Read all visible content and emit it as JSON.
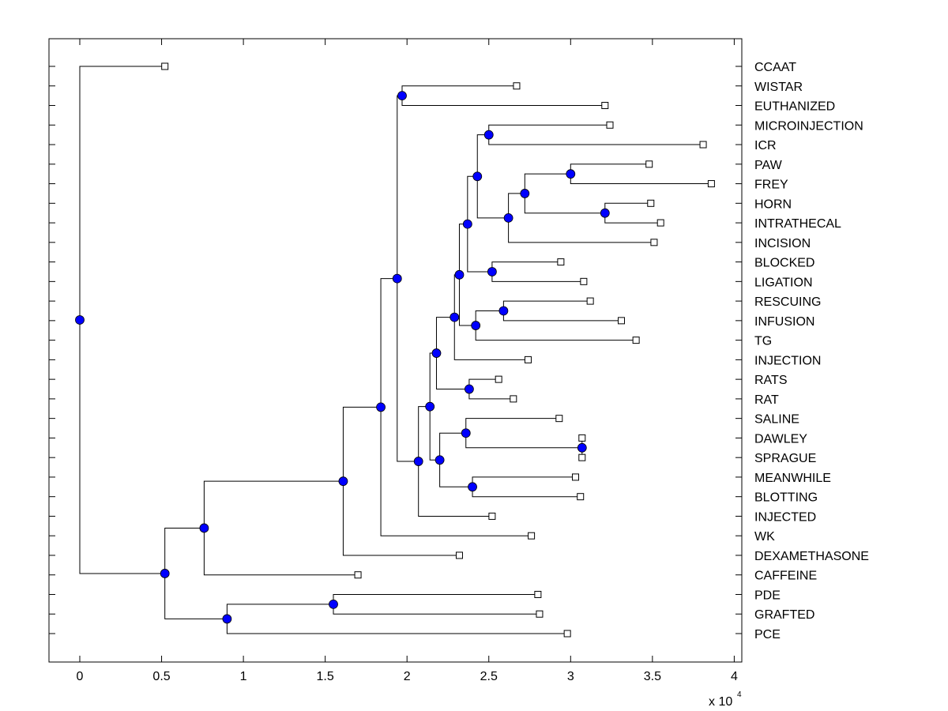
{
  "chart_data": {
    "type": "dendrogram",
    "title": "",
    "xlabel": "",
    "ylabel": "",
    "x_multiplier_label": "x 10",
    "x_multiplier_exponent": "4",
    "xlim": [
      -0.19,
      4.05
    ],
    "xticks": [
      0,
      0.5,
      1,
      1.5,
      2,
      2.5,
      3,
      3.5,
      4
    ],
    "xtick_labels": [
      "0",
      "0.5",
      "1",
      "1.5",
      "2",
      "2.5",
      "3",
      "3.5",
      "4"
    ],
    "grid": false,
    "node_color": "#0000ff",
    "leaf_marker": "open-square",
    "leaves": [
      {
        "label": "CCAAT",
        "x": 0.52
      },
      {
        "label": "WISTAR",
        "x": 2.67
      },
      {
        "label": "EUTHANIZED",
        "x": 3.21
      },
      {
        "label": "MICROINJECTION",
        "x": 3.24
      },
      {
        "label": "ICR",
        "x": 3.81
      },
      {
        "label": "PAW",
        "x": 3.48
      },
      {
        "label": "FREY",
        "x": 3.86
      },
      {
        "label": "HORN",
        "x": 3.49
      },
      {
        "label": "INTRATHECAL",
        "x": 3.55
      },
      {
        "label": "INCISION",
        "x": 3.51
      },
      {
        "label": "BLOCKED",
        "x": 2.94
      },
      {
        "label": "LIGATION",
        "x": 3.08
      },
      {
        "label": "RESCUING",
        "x": 3.12
      },
      {
        "label": "INFUSION",
        "x": 3.31
      },
      {
        "label": "TG",
        "x": 3.4
      },
      {
        "label": "INJECTION",
        "x": 2.74
      },
      {
        "label": "RATS",
        "x": 2.56
      },
      {
        "label": "RAT",
        "x": 2.65
      },
      {
        "label": "SALINE",
        "x": 2.93
      },
      {
        "label": "DAWLEY",
        "x": 3.07
      },
      {
        "label": "SPRAGUE",
        "x": 3.07
      },
      {
        "label": "MEANWHILE",
        "x": 3.03
      },
      {
        "label": "BLOTTING",
        "x": 3.06
      },
      {
        "label": "INJECTED",
        "x": 2.52
      },
      {
        "label": "WK",
        "x": 2.76
      },
      {
        "label": "DEXAMETHASONE",
        "x": 2.32
      },
      {
        "label": "CAFFEINE",
        "x": 1.7
      },
      {
        "label": "PDE",
        "x": 2.8
      },
      {
        "label": "GRAFTED",
        "x": 2.81
      },
      {
        "label": "PCE",
        "x": 2.98
      }
    ],
    "internal_nodes": [
      {
        "id": "n_we",
        "x": 1.97,
        "children": [
          "L1",
          "L2"
        ]
      },
      {
        "id": "n_mi",
        "x": 2.5,
        "children": [
          "L3",
          "L4"
        ]
      },
      {
        "id": "n_pf",
        "x": 3.0,
        "children": [
          "L5",
          "L6"
        ]
      },
      {
        "id": "n_hi",
        "x": 3.21,
        "children": [
          "L7",
          "L8"
        ]
      },
      {
        "id": "n_pfhi",
        "x": 2.72,
        "children": [
          "n_pf",
          "n_hi"
        ]
      },
      {
        "id": "n_inc",
        "x": 2.62,
        "children": [
          "n_pfhi",
          "L9"
        ]
      },
      {
        "id": "n_top",
        "x": 2.43,
        "children": [
          "n_mi",
          "n_inc"
        ]
      },
      {
        "id": "n_bl",
        "x": 2.52,
        "children": [
          "L10",
          "L11"
        ]
      },
      {
        "id": "n_topbl",
        "x": 2.37,
        "children": [
          "n_top",
          "n_bl"
        ]
      },
      {
        "id": "n_ri",
        "x": 2.59,
        "children": [
          "L12",
          "L13"
        ]
      },
      {
        "id": "n_rit",
        "x": 2.42,
        "children": [
          "n_ri",
          "L14"
        ]
      },
      {
        "id": "n_mid",
        "x": 2.32,
        "children": [
          "n_topbl",
          "n_rit"
        ]
      },
      {
        "id": "n_inj",
        "x": 2.29,
        "children": [
          "n_mid",
          "L15"
        ]
      },
      {
        "id": "n_rr",
        "x": 2.38,
        "children": [
          "L16",
          "L17"
        ]
      },
      {
        "id": "n_injrr",
        "x": 2.18,
        "children": [
          "n_inj",
          "n_rr"
        ]
      },
      {
        "id": "n_ds",
        "x": 3.07,
        "children": [
          "L19",
          "L20"
        ]
      },
      {
        "id": "n_sds",
        "x": 2.36,
        "children": [
          "L18",
          "n_ds"
        ]
      },
      {
        "id": "n_mb",
        "x": 2.4,
        "children": [
          "L21",
          "L22"
        ]
      },
      {
        "id": "n_sdsmb",
        "x": 2.2,
        "children": [
          "n_sds",
          "n_mb"
        ]
      },
      {
        "id": "n_big",
        "x": 2.14,
        "children": [
          "n_injrr",
          "n_sdsmb"
        ]
      },
      {
        "id": "n_injd",
        "x": 2.07,
        "children": [
          "n_big",
          "L23"
        ]
      },
      {
        "id": "n_we2",
        "x": 1.94,
        "children": [
          "n_we",
          "n_injd"
        ]
      },
      {
        "id": "n_wk",
        "x": 1.84,
        "children": [
          "n_we2",
          "L24"
        ]
      },
      {
        "id": "n_dex",
        "x": 1.61,
        "children": [
          "n_wk",
          "L25"
        ]
      },
      {
        "id": "n_caf",
        "x": 0.76,
        "children": [
          "n_dex",
          "L26"
        ]
      },
      {
        "id": "n_pg",
        "x": 1.55,
        "children": [
          "L27",
          "L28"
        ]
      },
      {
        "id": "n_pce",
        "x": 0.9,
        "children": [
          "n_pg",
          "L29"
        ]
      },
      {
        "id": "n_upper",
        "x": 0.52,
        "children": [
          "n_caf",
          "n_pce"
        ]
      },
      {
        "id": "n_root",
        "x": 0.0,
        "children": [
          "L0",
          "n_upper"
        ]
      }
    ]
  }
}
